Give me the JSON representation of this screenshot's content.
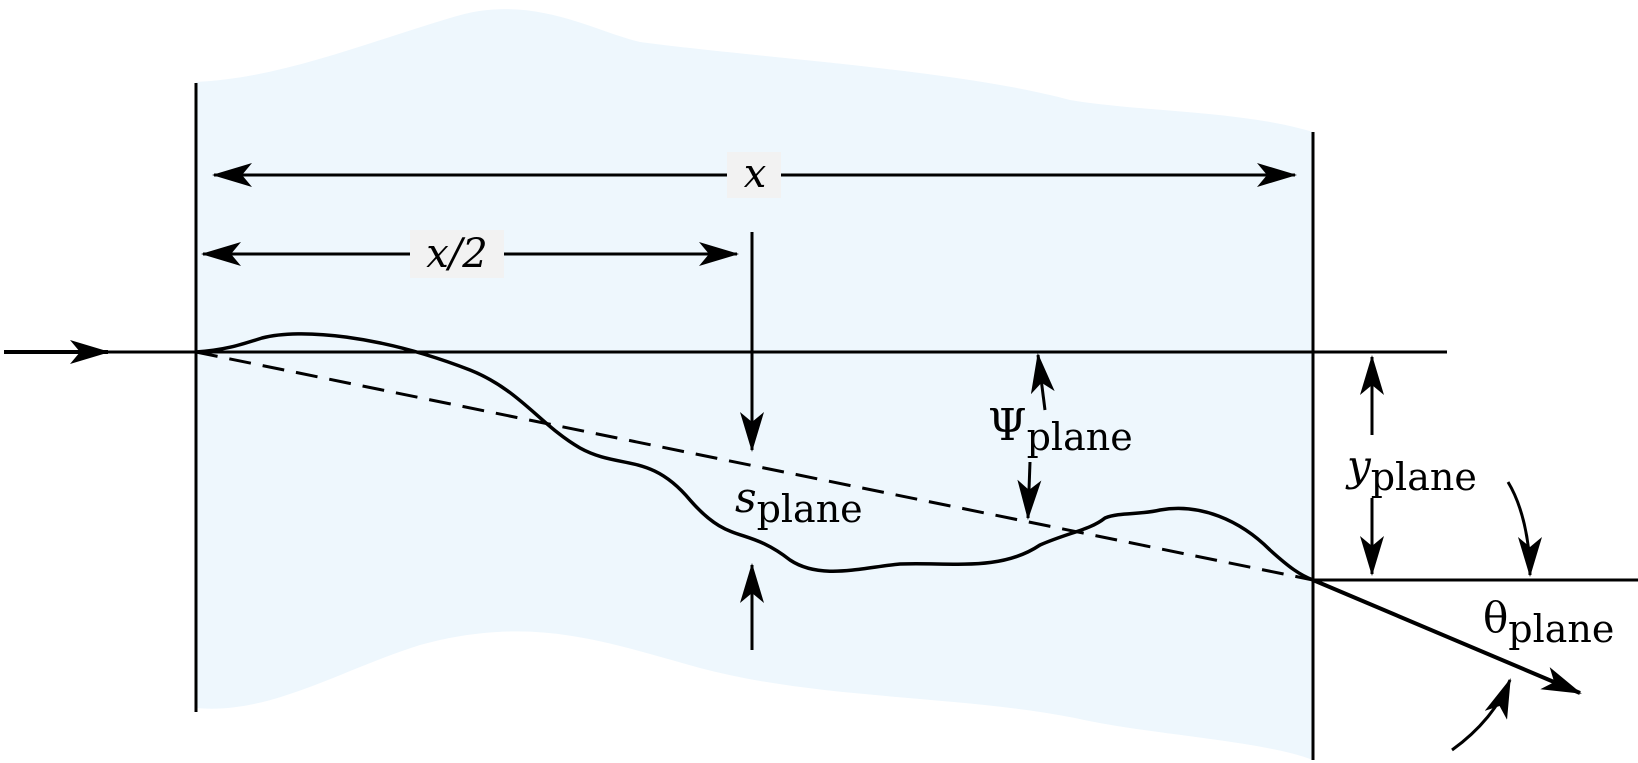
{
  "diagram": {
    "labels": {
      "x": "x",
      "x_half": "x/2",
      "s_base": "s",
      "s_sub": "plane",
      "psi_base": "Ψ",
      "psi_sub": "plane",
      "y_base": "y",
      "y_sub": "plane",
      "theta_base": "θ",
      "theta_sub": "plane"
    },
    "colors": {
      "medium": "#eef7fd",
      "stroke": "#000000",
      "label_bg": "#f2f2f2"
    }
  }
}
